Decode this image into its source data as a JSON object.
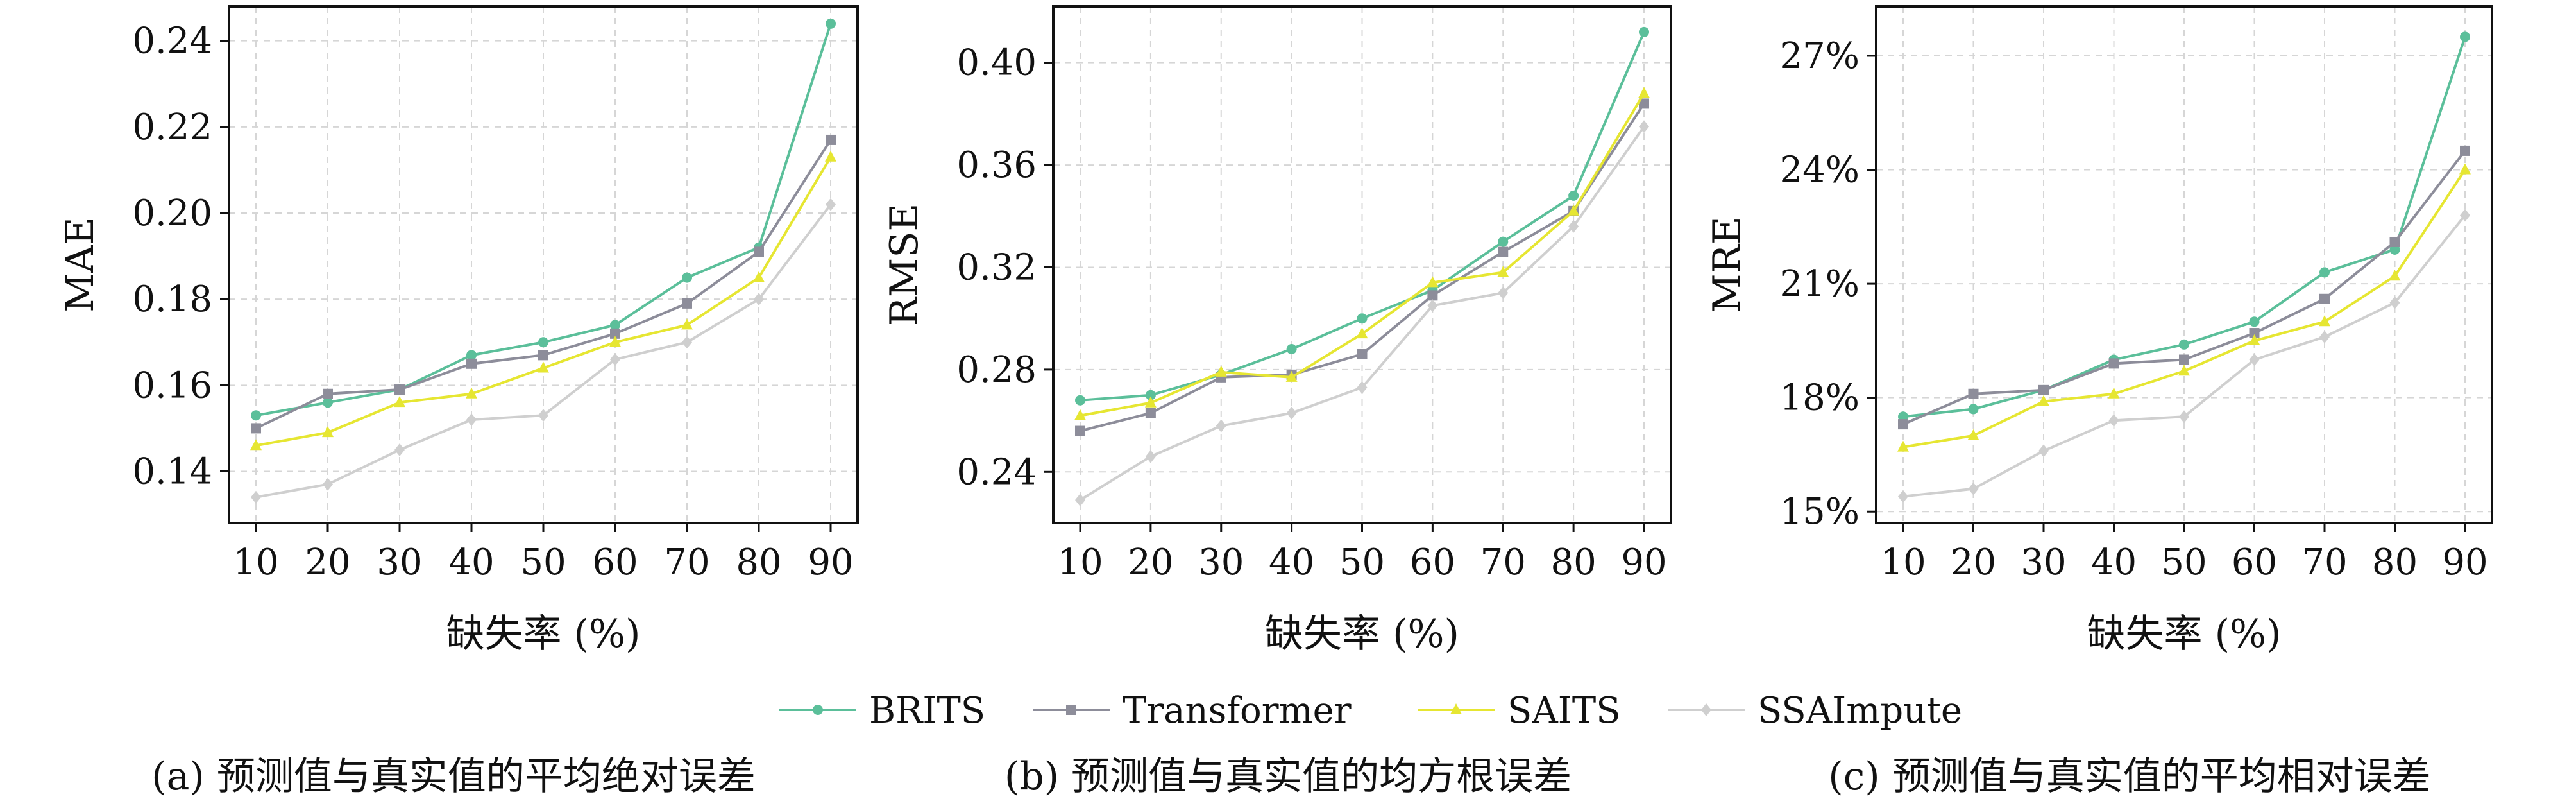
{
  "legend": {
    "items": [
      {
        "name": "BRITS",
        "color": "#5bbf9a",
        "marker": "circle"
      },
      {
        "name": "Transformer",
        "color": "#8d8d9a",
        "marker": "square"
      },
      {
        "name": "SAITS",
        "color": "#e6e632",
        "marker": "triangle"
      },
      {
        "name": "SSAImpute",
        "color": "#cfcfcf",
        "marker": "diamond"
      }
    ],
    "placement": "bottom-center"
  },
  "chart_data": [
    {
      "type": "line",
      "caption": "(a) 预测值与真实值的平均绝对误差",
      "xlabel": "缺失率 (%)",
      "ylabel": "MAE",
      "x": [
        10,
        20,
        30,
        40,
        50,
        60,
        70,
        80,
        90
      ],
      "ylim": [
        0.128,
        0.248
      ],
      "yticks": [
        0.14,
        0.16,
        0.18,
        0.2,
        0.22,
        0.24
      ],
      "ytick_labels": [
        "0.14",
        "0.16",
        "0.18",
        "0.20",
        "0.22",
        "0.24"
      ],
      "grid": true,
      "series": [
        {
          "name": "BRITS",
          "values": [
            0.153,
            0.156,
            0.159,
            0.167,
            0.17,
            0.174,
            0.185,
            0.192,
            0.244
          ]
        },
        {
          "name": "Transformer",
          "values": [
            0.15,
            0.158,
            0.159,
            0.165,
            0.167,
            0.172,
            0.179,
            0.191,
            0.217
          ]
        },
        {
          "name": "SAITS",
          "values": [
            0.146,
            0.149,
            0.156,
            0.158,
            0.164,
            0.17,
            0.174,
            0.185,
            0.213
          ]
        },
        {
          "name": "SSAImpute",
          "values": [
            0.134,
            0.137,
            0.145,
            0.152,
            0.153,
            0.166,
            0.17,
            0.18,
            0.202
          ]
        }
      ]
    },
    {
      "type": "line",
      "caption": "(b) 预测值与真实值的均方根误差",
      "xlabel": "缺失率 (%)",
      "ylabel": "RMSE",
      "x": [
        10,
        20,
        30,
        40,
        50,
        60,
        70,
        80,
        90
      ],
      "ylim": [
        0.22,
        0.422
      ],
      "yticks": [
        0.24,
        0.28,
        0.32,
        0.36,
        0.4
      ],
      "ytick_labels": [
        "0.24",
        "0.28",
        "0.32",
        "0.36",
        "0.40"
      ],
      "grid": true,
      "series": [
        {
          "name": "BRITS",
          "values": [
            0.268,
            0.27,
            0.278,
            0.288,
            0.3,
            0.311,
            0.33,
            0.348,
            0.412
          ]
        },
        {
          "name": "Transformer",
          "values": [
            0.256,
            0.263,
            0.277,
            0.278,
            0.286,
            0.309,
            0.326,
            0.342,
            0.384
          ]
        },
        {
          "name": "SAITS",
          "values": [
            0.262,
            0.267,
            0.279,
            0.277,
            0.294,
            0.314,
            0.318,
            0.342,
            0.388
          ]
        },
        {
          "name": "SSAImpute",
          "values": [
            0.229,
            0.246,
            0.258,
            0.263,
            0.273,
            0.305,
            0.31,
            0.336,
            0.375
          ]
        }
      ]
    },
    {
      "type": "line",
      "caption": "(c) 预测值与真实值的平均相对误差",
      "xlabel": "缺失率 (%)",
      "ylabel": "MRE",
      "x": [
        10,
        20,
        30,
        40,
        50,
        60,
        70,
        80,
        90
      ],
      "ylim": [
        14.7,
        28.3
      ],
      "yticks": [
        15,
        18,
        21,
        24,
        27
      ],
      "ytick_labels": [
        "15%",
        "18%",
        "21%",
        "24%",
        "27%"
      ],
      "grid": true,
      "series": [
        {
          "name": "BRITS",
          "values": [
            17.5,
            17.7,
            18.2,
            19.0,
            19.4,
            20.0,
            21.3,
            21.9,
            27.5
          ]
        },
        {
          "name": "Transformer",
          "values": [
            17.3,
            18.1,
            18.2,
            18.9,
            19.0,
            19.7,
            20.6,
            22.1,
            24.5
          ]
        },
        {
          "name": "SAITS",
          "values": [
            16.7,
            17.0,
            17.9,
            18.1,
            18.7,
            19.5,
            20.0,
            21.2,
            24.0
          ]
        },
        {
          "name": "SSAImpute",
          "values": [
            15.4,
            15.6,
            16.6,
            17.4,
            17.5,
            19.0,
            19.6,
            20.5,
            22.8
          ]
        }
      ]
    }
  ]
}
